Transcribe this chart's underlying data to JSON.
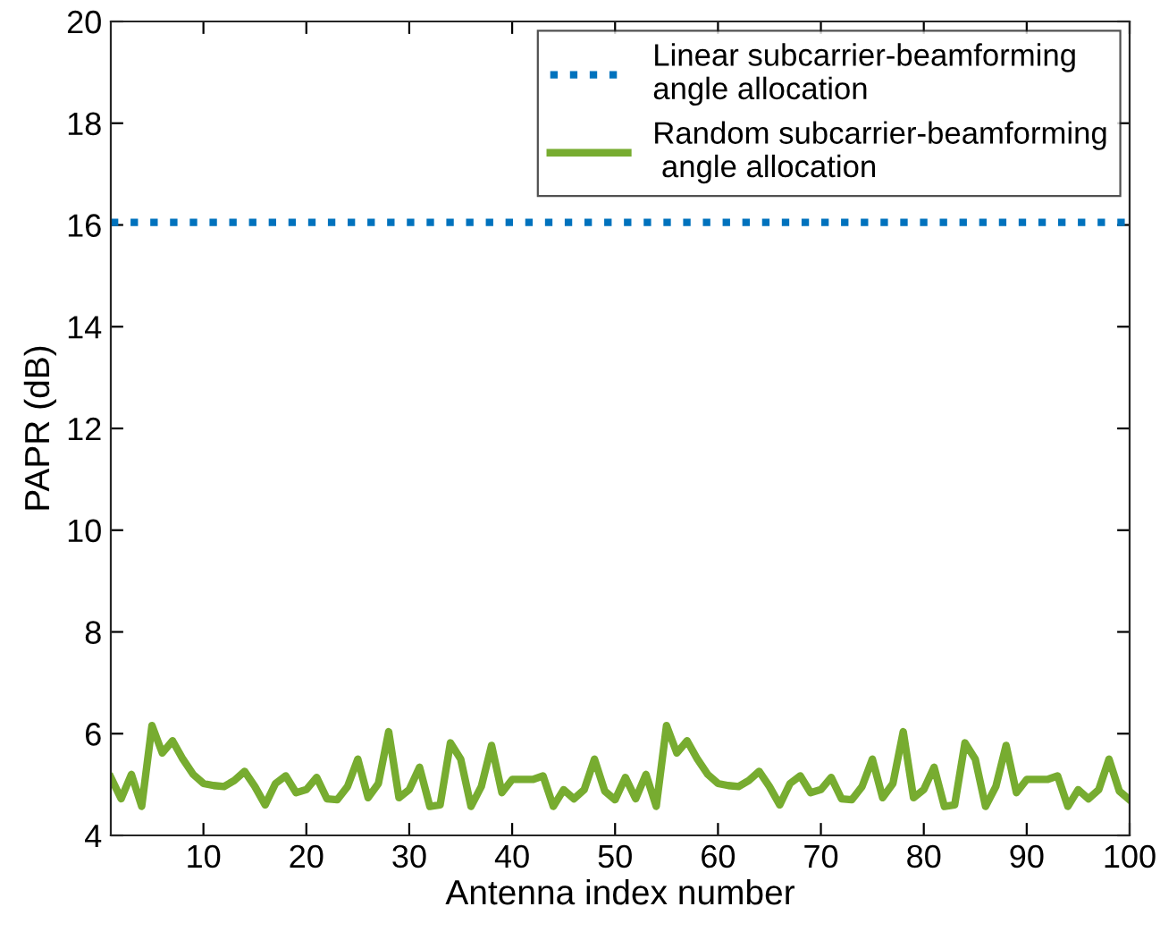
{
  "chart_data": {
    "type": "line",
    "xlabel": "Antenna index number",
    "ylabel": "PAPR (dB)",
    "x": [
      1,
      2,
      3,
      4,
      5,
      6,
      7,
      8,
      9,
      10,
      11,
      12,
      13,
      14,
      15,
      16,
      17,
      18,
      19,
      20,
      21,
      22,
      23,
      24,
      25,
      26,
      27,
      28,
      29,
      30,
      31,
      32,
      33,
      34,
      35,
      36,
      37,
      38,
      39,
      40,
      41,
      42,
      43,
      44,
      45,
      46,
      47,
      48,
      49,
      50,
      51,
      52,
      53,
      54,
      55,
      56,
      57,
      58,
      59,
      60,
      61,
      62,
      63,
      64,
      65,
      66,
      67,
      68,
      69,
      70,
      71,
      72,
      73,
      74,
      75,
      76,
      77,
      78,
      79,
      80,
      81,
      82,
      83,
      84,
      85,
      86,
      87,
      88,
      89,
      90,
      91,
      92,
      93,
      94,
      95,
      96,
      97,
      98,
      99,
      100
    ],
    "series": [
      {
        "name": "Linear subcarrier-beamforming\nangle allocation",
        "color": "#0072bd",
        "line_style": "dotted",
        "x": [
          1,
          100
        ],
        "values": [
          16.05,
          16.05
        ]
      },
      {
        "name": "Random subcarrier-beamforming\n angle allocation",
        "color": "#77ac30",
        "line_style": "solid",
        "values": [
          5.14,
          4.72,
          5.2,
          4.57,
          6.16,
          5.62,
          5.86,
          5.5,
          5.2,
          5.02,
          4.98,
          4.96,
          5.08,
          5.26,
          4.96,
          4.6,
          5.02,
          5.17,
          4.84,
          4.9,
          5.14,
          4.72,
          4.7,
          4.96,
          5.5,
          4.74,
          5.02,
          6.04,
          4.74,
          4.9,
          5.34,
          4.57,
          4.6,
          5.82,
          5.5,
          4.57,
          4.96,
          5.77,
          4.84,
          5.1,
          5.1,
          5.1,
          5.17,
          4.57,
          4.9,
          4.72,
          4.9,
          5.5,
          4.87,
          4.7,
          5.14,
          4.72,
          5.2,
          4.57,
          6.16,
          5.62,
          5.86,
          5.5,
          5.2,
          5.02,
          4.98,
          4.96,
          5.08,
          5.26,
          4.96,
          4.6,
          5.02,
          5.17,
          4.84,
          4.9,
          5.14,
          4.72,
          4.7,
          4.96,
          5.5,
          4.74,
          5.02,
          6.04,
          4.74,
          4.9,
          5.34,
          4.57,
          4.6,
          5.82,
          5.5,
          4.57,
          4.96,
          5.77,
          4.84,
          5.1,
          5.1,
          5.1,
          5.17,
          4.57,
          4.9,
          4.72,
          4.9,
          5.5,
          4.87,
          4.7
        ]
      }
    ],
    "xlim": [
      1,
      100
    ],
    "xticks": [
      10,
      20,
      30,
      40,
      50,
      60,
      70,
      80,
      90,
      100
    ],
    "ylim": [
      4,
      20
    ],
    "yticks": [
      4,
      6,
      8,
      10,
      12,
      14,
      16,
      18,
      20
    ],
    "grid": false,
    "legend": "top right"
  }
}
